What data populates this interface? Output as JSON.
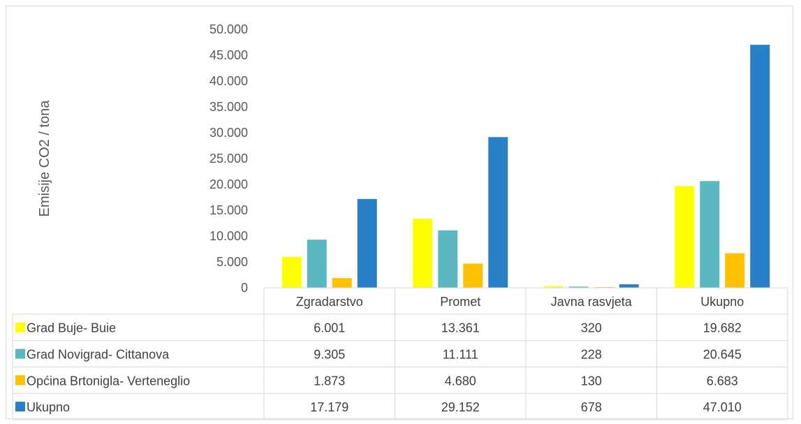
{
  "chart_data": {
    "type": "bar",
    "title": "",
    "ylabel": "Emisije CO2 / tona",
    "xlabel": "",
    "ylim": [
      0,
      50000
    ],
    "yticks": [
      "0",
      "5.000",
      "10.000",
      "15.000",
      "20.000",
      "25.000",
      "30.000",
      "35.000",
      "40.000",
      "45.000",
      "50.000"
    ],
    "grid": false,
    "legend": "data-table",
    "categories": [
      "Zgradarstvo",
      "Promet",
      "Javna rasvjeta",
      "Ukupno"
    ],
    "series": [
      {
        "name": "Grad Buje- Buie",
        "color": "#ffff00",
        "values": [
          6001,
          13361,
          320,
          19682
        ],
        "labels": [
          "6.001",
          "13.361",
          "320",
          "19.682"
        ]
      },
      {
        "name": "Grad Novigrad- Cittanova",
        "color": "#5bb7c0",
        "values": [
          9305,
          11111,
          228,
          20645
        ],
        "labels": [
          "9.305",
          "11.111",
          "228",
          "20.645"
        ]
      },
      {
        "name": "Općina Brtonigla- Verteneglio",
        "color": "#ffc000",
        "values": [
          1873,
          4680,
          130,
          6683
        ],
        "labels": [
          "1.873",
          "4.680",
          "130",
          "6.683"
        ]
      },
      {
        "name": "Ukupno",
        "color": "#2880c6",
        "values": [
          17179,
          29152,
          678,
          47010
        ],
        "labels": [
          "17.179",
          "29.152",
          "678",
          "47.010"
        ]
      }
    ]
  }
}
